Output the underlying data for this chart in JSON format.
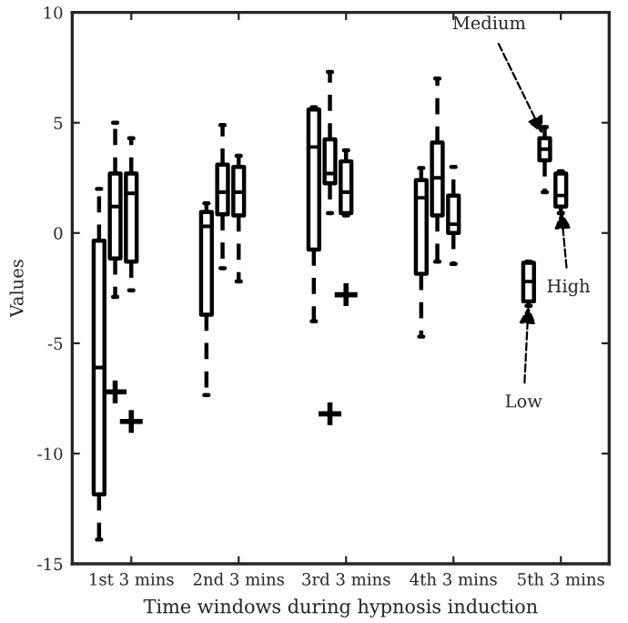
{
  "chart_data": {
    "type": "box",
    "xlabel": "Time windows during hypnosis induction",
    "ylabel": "Values",
    "categories": [
      "1st 3 mins",
      "2nd 3 mins",
      "3rd 3 mins",
      "4th 3 mins",
      "5th 3 mins"
    ],
    "ylim": [
      -15,
      10
    ],
    "yticks": [
      -15,
      -10,
      -5,
      0,
      5,
      10
    ],
    "grid": false,
    "legend": false,
    "series": [
      {
        "name": "Low",
        "color": "#000000",
        "boxes": [
          {
            "low": -13.9,
            "q1": -11.85,
            "median": -6.1,
            "q3": -0.35,
            "high": 2.0
          },
          {
            "low": -7.35,
            "q1": -3.7,
            "median": 0.3,
            "q3": 0.95,
            "high": 1.35
          },
          {
            "low": -4.0,
            "q1": -0.75,
            "median": 3.9,
            "q3": 5.6,
            "high": 5.7
          },
          {
            "low": -4.7,
            "q1": -1.85,
            "median": 1.6,
            "q3": 2.4,
            "high": 2.95
          },
          {
            "low": -3.3,
            "q1": -3.1,
            "median": -2.2,
            "q3": -1.35,
            "high": -1.3
          }
        ]
      },
      {
        "name": "Medium",
        "color": "#000000",
        "boxes": [
          {
            "low": -2.9,
            "q1": -1.15,
            "median": 1.2,
            "q3": 2.7,
            "high": 5.0,
            "outliers": [
              -7.2
            ]
          },
          {
            "low": -1.6,
            "q1": 0.85,
            "median": 1.85,
            "q3": 3.1,
            "high": 4.9
          },
          {
            "low": 0.9,
            "q1": 2.25,
            "median": 2.7,
            "q3": 4.25,
            "high": 7.3,
            "outliers": [
              -8.2
            ]
          },
          {
            "low": -1.3,
            "q1": 0.8,
            "median": 2.5,
            "q3": 4.1,
            "high": 7.0
          },
          {
            "low": 1.85,
            "q1": 3.3,
            "median": 3.8,
            "q3": 4.3,
            "high": 4.8
          }
        ]
      },
      {
        "name": "High",
        "color": "#000000",
        "boxes": [
          {
            "low": -2.6,
            "q1": -1.3,
            "median": 1.8,
            "q3": 2.7,
            "high": 4.3,
            "outliers": [
              -8.55
            ]
          },
          {
            "low": -2.2,
            "q1": 0.8,
            "median": 1.85,
            "q3": 3.0,
            "high": 3.5
          },
          {
            "low": 0.8,
            "q1": 0.9,
            "median": 1.85,
            "q3": 3.25,
            "high": 3.75,
            "outliers": [
              -2.8
            ]
          },
          {
            "low": -1.4,
            "q1": 0.0,
            "median": 0.4,
            "q3": 1.7,
            "high": 3.0
          },
          {
            "low": 0.9,
            "q1": 1.2,
            "median": 1.7,
            "q3": 2.7,
            "high": 2.8
          }
        ]
      }
    ]
  }
}
